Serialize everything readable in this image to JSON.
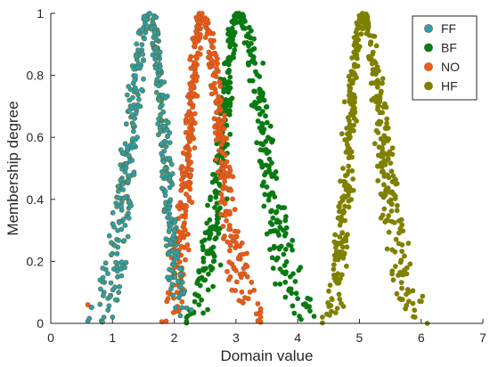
{
  "chart_data": {
    "type": "scatter",
    "title": "",
    "xlabel": "Domain value",
    "ylabel": "Membership degree",
    "xlim": [
      0,
      7
    ],
    "ylim": [
      0,
      1
    ],
    "x_ticks": [
      0,
      1,
      2,
      3,
      4,
      5,
      6,
      7
    ],
    "y_ticks": [
      0,
      0.2,
      0.4,
      0.6,
      0.8,
      1
    ],
    "y_tick_labels": [
      "0",
      "0.2",
      "0.4",
      "0.6",
      "0.8",
      "1"
    ],
    "grid": false,
    "legend_position": "top-right",
    "series": [
      {
        "name": "FF",
        "color": "#2e9fb3",
        "edge_color": "#5a6e2a",
        "peak": 1.6,
        "support": [
          0.6,
          2.3
        ],
        "points": [
          [
            1.6,
            1.0
          ],
          [
            1.55,
            0.98
          ],
          [
            1.65,
            0.97
          ],
          [
            1.5,
            0.85
          ],
          [
            1.7,
            0.86
          ],
          [
            1.45,
            0.7
          ],
          [
            1.75,
            0.72
          ],
          [
            1.4,
            0.6
          ],
          [
            1.8,
            0.58
          ],
          [
            1.35,
            0.48
          ],
          [
            1.85,
            0.5
          ],
          [
            1.3,
            0.38
          ],
          [
            1.9,
            0.36
          ],
          [
            1.25,
            0.28
          ],
          [
            1.95,
            0.26
          ],
          [
            1.2,
            0.18
          ],
          [
            2.0,
            0.2
          ],
          [
            1.1,
            0.1
          ],
          [
            2.1,
            0.12
          ],
          [
            1.0,
            0.02
          ],
          [
            0.8,
            0.14
          ],
          [
            2.2,
            0.05
          ]
        ]
      },
      {
        "name": "BF",
        "color": "#0a7a12",
        "edge_color": "#0a7a12",
        "peak": 3.05,
        "support": [
          2.2,
          4.3
        ],
        "points": [
          [
            3.05,
            1.0
          ],
          [
            3.0,
            0.97
          ],
          [
            3.1,
            0.96
          ],
          [
            2.95,
            0.86
          ],
          [
            3.2,
            0.84
          ],
          [
            2.9,
            0.72
          ],
          [
            3.3,
            0.7
          ],
          [
            2.8,
            0.6
          ],
          [
            3.4,
            0.56
          ],
          [
            2.75,
            0.48
          ],
          [
            3.5,
            0.44
          ],
          [
            2.7,
            0.36
          ],
          [
            3.6,
            0.34
          ],
          [
            2.6,
            0.24
          ],
          [
            3.7,
            0.24
          ],
          [
            2.5,
            0.14
          ],
          [
            3.8,
            0.16
          ],
          [
            2.4,
            0.06
          ],
          [
            4.0,
            0.08
          ],
          [
            4.2,
            0.04
          ]
        ]
      },
      {
        "name": "NO",
        "color": "#f05a14",
        "edge_color": "#b05a2a",
        "peak": 2.45,
        "support": [
          1.8,
          3.4
        ],
        "points": [
          [
            2.45,
            1.0
          ],
          [
            2.4,
            0.97
          ],
          [
            2.5,
            0.96
          ],
          [
            2.35,
            0.86
          ],
          [
            2.6,
            0.85
          ],
          [
            2.3,
            0.74
          ],
          [
            2.7,
            0.72
          ],
          [
            2.25,
            0.62
          ],
          [
            2.8,
            0.6
          ],
          [
            2.2,
            0.5
          ],
          [
            2.85,
            0.48
          ],
          [
            2.15,
            0.38
          ],
          [
            2.9,
            0.36
          ],
          [
            2.1,
            0.28
          ],
          [
            3.0,
            0.26
          ],
          [
            2.0,
            0.18
          ],
          [
            3.1,
            0.16
          ],
          [
            1.9,
            0.08
          ],
          [
            3.2,
            0.08
          ],
          [
            0.6,
            0.06
          ],
          [
            3.4,
            0.02
          ]
        ]
      },
      {
        "name": "HF",
        "color": "#808000",
        "edge_color": "#808000",
        "peak": 5.05,
        "support": [
          4.4,
          6.1
        ],
        "points": [
          [
            5.05,
            1.0
          ],
          [
            5.0,
            0.97
          ],
          [
            5.1,
            0.96
          ],
          [
            4.95,
            0.86
          ],
          [
            5.15,
            0.86
          ],
          [
            4.9,
            0.72
          ],
          [
            5.2,
            0.72
          ],
          [
            4.85,
            0.6
          ],
          [
            5.25,
            0.58
          ],
          [
            4.8,
            0.48
          ],
          [
            5.3,
            0.46
          ],
          [
            4.75,
            0.36
          ],
          [
            5.35,
            0.34
          ],
          [
            4.7,
            0.26
          ],
          [
            5.45,
            0.24
          ],
          [
            4.65,
            0.16
          ],
          [
            5.55,
            0.14
          ],
          [
            4.55,
            0.08
          ],
          [
            5.65,
            0.08
          ],
          [
            4.4,
            0.02
          ],
          [
            6.1,
            0.0
          ],
          [
            5.9,
            0.02
          ]
        ]
      }
    ]
  }
}
